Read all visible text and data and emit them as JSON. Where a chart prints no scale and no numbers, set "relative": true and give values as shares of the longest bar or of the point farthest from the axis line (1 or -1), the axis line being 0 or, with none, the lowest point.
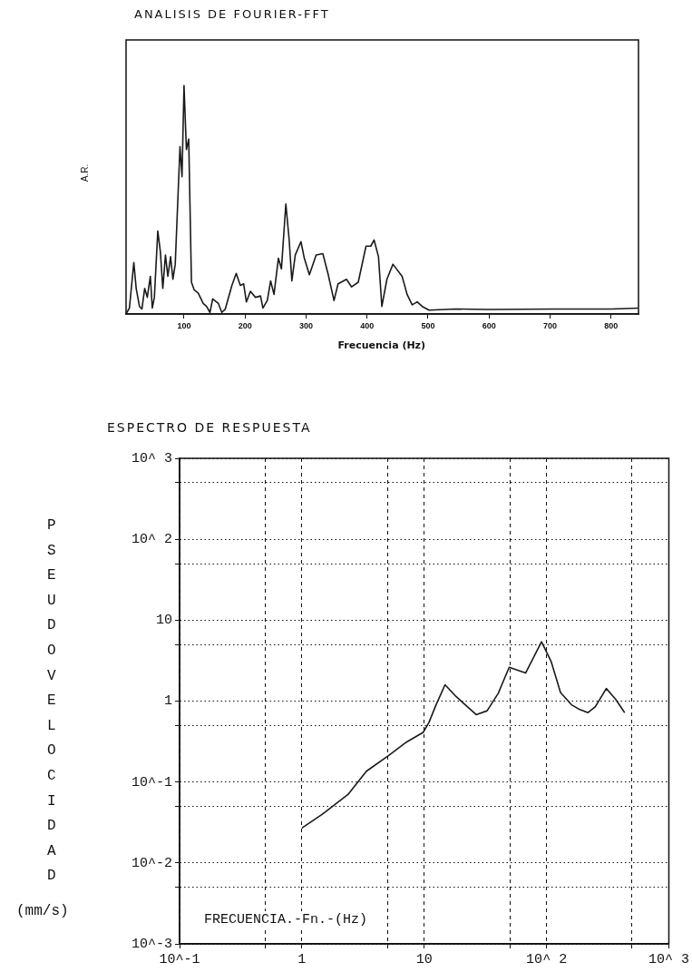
{
  "chart_data": [
    {
      "type": "line",
      "title": "ANALISIS DE FOURIER-FFT",
      "xlabel": "Frecuencia (Hz)",
      "ylabel": "A.R.",
      "relative": true,
      "marker": "none",
      "color": "#1a1a1a",
      "xlim": [
        5,
        845
      ],
      "xticks": [
        100,
        200,
        300,
        400,
        500,
        600,
        700,
        800
      ],
      "x": [
        5,
        10.5,
        17.7,
        21.6,
        27,
        31,
        35.5,
        39.8,
        44.8,
        48,
        51.4,
        57,
        61.3,
        65.2,
        69.6,
        73.5,
        78,
        81.8,
        85.6,
        88.4,
        93.4,
        96.7,
        100,
        103.9,
        107.7,
        112.2,
        116.6,
        123.2,
        131.5,
        137,
        142.5,
        147,
        156.4,
        161.9,
        167.4,
        178.5,
        185.6,
        192.3,
        197.8,
        202.2,
        208.8,
        217.1,
        225.4,
        229.3,
        236.5,
        242,
        247.5,
        254.7,
        259.7,
        266.9,
        272.4,
        276.8,
        282.3,
        291.7,
        297.2,
        305.5,
        316.6,
        327.6,
        335.9,
        345.9,
        352.5,
        366.3,
        374.6,
        385.6,
        398.3,
        406.1,
        411.6,
        418.8,
        424.3,
        432.6,
        442.5,
        457.5,
        465.7,
        474,
        482.3,
        490.6,
        501.7,
        543,
        598.3,
        708.8,
        800,
        844
      ],
      "values": [
        0,
        0.026,
        0.225,
        0.112,
        0.033,
        0.022,
        0.112,
        0.073,
        0.165,
        0.026,
        0.073,
        0.363,
        0.271,
        0.112,
        0.258,
        0.165,
        0.251,
        0.152,
        0.218,
        0.403,
        0.733,
        0.601,
        1,
        0.72,
        0.766,
        0.139,
        0.106,
        0.092,
        0.046,
        0.033,
        0.007,
        0.066,
        0.046,
        0.007,
        0.02,
        0.125,
        0.178,
        0.125,
        0.132,
        0.053,
        0.099,
        0.073,
        0.079,
        0.026,
        0.059,
        0.145,
        0.086,
        0.244,
        0.198,
        0.482,
        0.324,
        0.145,
        0.258,
        0.317,
        0.244,
        0.172,
        0.258,
        0.264,
        0.178,
        0.059,
        0.132,
        0.152,
        0.119,
        0.139,
        0.297,
        0.297,
        0.324,
        0.251,
        0.033,
        0.152,
        0.218,
        0.165,
        0.086,
        0.04,
        0.053,
        0.033,
        0.017,
        0.022,
        0.02,
        0.022,
        0.022,
        0.026
      ]
    },
    {
      "type": "line",
      "title": "ESPECTRO DE RESPUESTA",
      "xlabel": "FRECUENCIA.-Fn.-(Hz)",
      "ylabel": "PSEUDOVELOCIDAD (mm/s)",
      "log": "xy",
      "grid": true,
      "marker": "none",
      "color": "#1a1a1a",
      "xlim": [
        0.1,
        1000
      ],
      "ylim": [
        0.001,
        1000
      ],
      "xticks": [
        {
          "value": 0.1,
          "label": "10^-1"
        },
        {
          "value": 0.5,
          "label": null
        },
        1,
        {
          "value": 5,
          "label": null
        },
        10,
        {
          "value": 50,
          "label": null
        },
        {
          "value": 100,
          "label": "10^ 2"
        },
        {
          "value": 500,
          "label": null
        },
        {
          "value": 1000,
          "label": "10^ 3"
        }
      ],
      "yticks": [
        {
          "value": 0.001,
          "label": "10^-3"
        },
        {
          "value": 0.005,
          "label": null
        },
        {
          "value": 0.01,
          "label": "10^-2"
        },
        {
          "value": 0.05,
          "label": null
        },
        {
          "value": 0.1,
          "label": "10^-1"
        },
        {
          "value": 0.5,
          "label": null
        },
        1,
        {
          "value": 5,
          "label": null
        },
        10,
        {
          "value": 50,
          "label": null
        },
        {
          "value": 100,
          "label": "10^ 2"
        },
        {
          "value": 500,
          "label": null
        },
        {
          "value": 1000,
          "label": "10^ 3"
        }
      ],
      "x": [
        1.0,
        1.47,
        2.38,
        3.37,
        5.1,
        7.2,
        9.8,
        10.9,
        12.5,
        14.8,
        18.2,
        26.6,
        32.7,
        40.3,
        49.5,
        67.4,
        91,
        109,
        130,
        160,
        183,
        218,
        250,
        308,
        366,
        435
      ],
      "values": [
        0.027,
        0.04,
        0.07,
        0.136,
        0.212,
        0.313,
        0.41,
        0.54,
        0.9,
        1.59,
        1.14,
        0.68,
        0.76,
        1.25,
        2.62,
        2.22,
        5.4,
        3.09,
        1.28,
        0.9,
        0.8,
        0.72,
        0.85,
        1.43,
        1.06,
        0.72
      ]
    }
  ]
}
